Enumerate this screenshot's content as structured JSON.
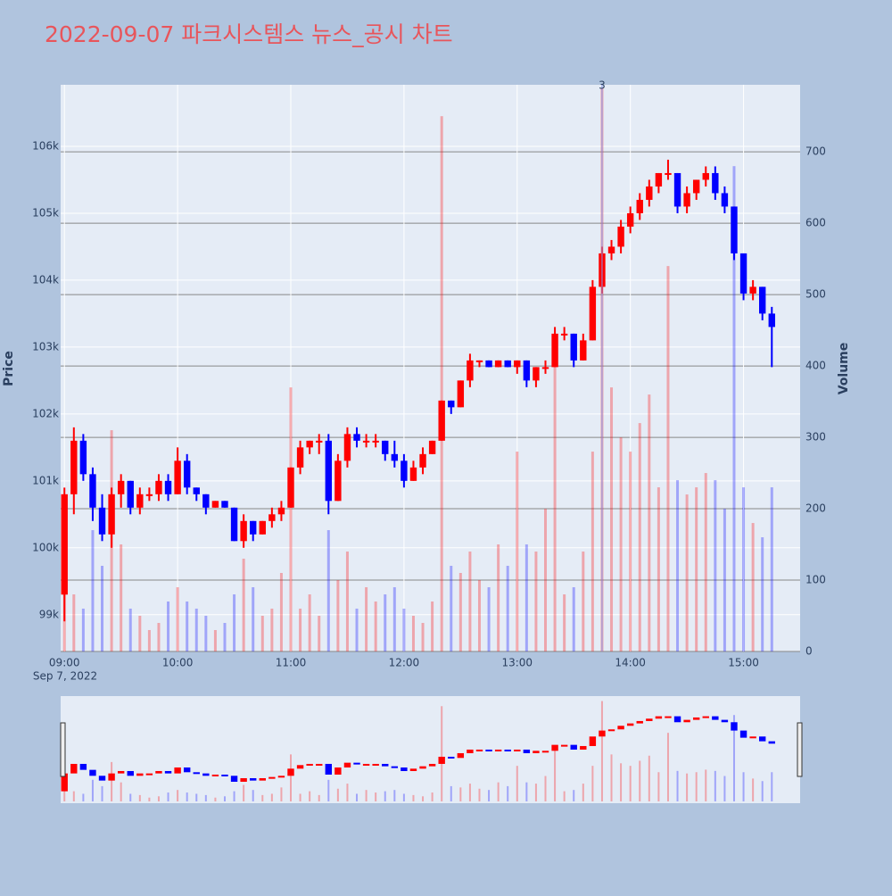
{
  "chart_data": {
    "type": "candlestick",
    "title": "2022-09-07 파크시스템스 뉴스_공시 차트",
    "x": [
      "09:00",
      "09:05",
      "09:10",
      "09:15",
      "09:20",
      "09:25",
      "09:30",
      "09:35",
      "09:40",
      "09:45",
      "09:50",
      "09:55",
      "10:00",
      "10:05",
      "10:10",
      "10:15",
      "10:20",
      "10:25",
      "10:30",
      "10:35",
      "10:40",
      "10:45",
      "10:50",
      "10:55",
      "11:00",
      "11:05",
      "11:10",
      "11:15",
      "11:20",
      "11:25",
      "11:30",
      "11:35",
      "11:40",
      "11:45",
      "11:50",
      "11:55",
      "12:00",
      "12:05",
      "12:10",
      "12:15",
      "12:20",
      "12:25",
      "12:30",
      "12:35",
      "12:40",
      "12:45",
      "12:50",
      "12:55",
      "13:00",
      "13:05",
      "13:10",
      "13:15",
      "13:20",
      "13:25",
      "13:30",
      "13:35",
      "13:40",
      "13:45",
      "13:50",
      "13:55",
      "14:00",
      "14:05",
      "14:10",
      "14:15",
      "14:20",
      "14:25",
      "14:30",
      "14:35",
      "14:40",
      "14:45",
      "14:50",
      "14:55",
      "15:00",
      "15:05",
      "15:10",
      "15:15"
    ],
    "open": [
      99300,
      100800,
      101600,
      101100,
      100600,
      100200,
      100800,
      101000,
      100600,
      100800,
      100800,
      101000,
      100800,
      101300,
      100900,
      100800,
      100600,
      100700,
      100600,
      100100,
      100400,
      100200,
      100400,
      100500,
      100600,
      101200,
      101500,
      101600,
      101600,
      100700,
      101300,
      101700,
      101600,
      101600,
      101600,
      101400,
      101300,
      101000,
      101200,
      101400,
      101600,
      102200,
      102100,
      102500,
      102800,
      102800,
      102700,
      102800,
      102700,
      102800,
      102500,
      102700,
      102700,
      103200,
      103200,
      102800,
      103100,
      103900,
      104400,
      104500,
      104800,
      105000,
      105200,
      105400,
      105600,
      105600,
      105100,
      105300,
      105500,
      105600,
      105300,
      105100,
      104400,
      103800,
      103900,
      103500
    ],
    "high": [
      100900,
      101800,
      101700,
      101200,
      100800,
      100900,
      101100,
      101000,
      100900,
      100900,
      101100,
      101100,
      101500,
      101400,
      100900,
      100800,
      100700,
      100700,
      100600,
      100500,
      100400,
      100400,
      100600,
      100700,
      101200,
      101600,
      101600,
      101700,
      101700,
      101400,
      101800,
      101800,
      101700,
      101700,
      101600,
      101600,
      101400,
      101300,
      101500,
      101600,
      102200,
      102200,
      102500,
      102900,
      102800,
      102800,
      102800,
      102800,
      102800,
      102800,
      102700,
      102800,
      103300,
      103300,
      103200,
      103200,
      104000,
      104500,
      104600,
      104900,
      105100,
      105300,
      105500,
      105600,
      105800,
      105600,
      105400,
      105500,
      105700,
      105700,
      105400,
      105100,
      104400,
      104000,
      103900,
      103600
    ],
    "low": [
      98900,
      100500,
      101000,
      100400,
      100100,
      100000,
      100600,
      100500,
      100500,
      100700,
      100700,
      100700,
      100800,
      100800,
      100700,
      100500,
      100600,
      100600,
      100100,
      100000,
      100100,
      100200,
      100300,
      100400,
      100600,
      101100,
      101400,
      101400,
      100500,
      100700,
      101200,
      101500,
      101500,
      101500,
      101300,
      101200,
      100900,
      101000,
      101100,
      101400,
      101600,
      102000,
      102100,
      102400,
      102700,
      102700,
      102700,
      102700,
      102600,
      102400,
      102400,
      102600,
      102700,
      103100,
      102700,
      102800,
      103100,
      103800,
      104300,
      104400,
      104700,
      104900,
      105100,
      105300,
      105500,
      105000,
      105000,
      105200,
      105400,
      105200,
      105000,
      104300,
      103700,
      103700,
      103400,
      102700
    ],
    "close": [
      100800,
      101600,
      101100,
      100600,
      100200,
      100800,
      101000,
      100600,
      100800,
      100800,
      101000,
      100800,
      101300,
      100900,
      100800,
      100600,
      100700,
      100600,
      100100,
      100400,
      100200,
      100400,
      100500,
      100600,
      101200,
      101500,
      101600,
      101600,
      100700,
      101300,
      101700,
      101600,
      101600,
      101600,
      101400,
      101300,
      101000,
      101200,
      101400,
      101600,
      102200,
      102100,
      102500,
      102800,
      102800,
      102700,
      102800,
      102700,
      102800,
      102500,
      102700,
      102700,
      103200,
      103200,
      102800,
      103100,
      103900,
      104400,
      104500,
      104800,
      105000,
      105200,
      105400,
      105600,
      105600,
      105100,
      105300,
      105500,
      105600,
      105300,
      105100,
      104400,
      103800,
      103900,
      103500,
      103300
    ],
    "volume": [
      160,
      80,
      60,
      170,
      120,
      310,
      150,
      60,
      50,
      30,
      40,
      70,
      90,
      70,
      60,
      50,
      30,
      40,
      80,
      130,
      90,
      50,
      60,
      110,
      370,
      60,
      80,
      50,
      170,
      100,
      140,
      60,
      90,
      70,
      80,
      90,
      60,
      50,
      40,
      70,
      750,
      120,
      110,
      140,
      100,
      90,
      150,
      120,
      280,
      150,
      140,
      200,
      420,
      80,
      90,
      140,
      280,
      790,
      370,
      300,
      280,
      320,
      360,
      230,
      540,
      240,
      220,
      230,
      250,
      240,
      200,
      680,
      230,
      180,
      160,
      230
    ],
    "increasing_color": "#ff0000",
    "decreasing_color": "#0000ff",
    "xlim": [
      "08:58",
      "15:30"
    ],
    "xticks": [
      "09:00",
      "10:00",
      "11:00",
      "12:00",
      "13:00",
      "14:00",
      "15:00"
    ],
    "xdate": "Sep 7, 2022",
    "ylim": [
      98450,
      106920
    ],
    "yticks": [
      {
        "value": 99000,
        "label": "99k"
      },
      {
        "value": 100000,
        "label": "100k"
      },
      {
        "value": 101000,
        "label": "101k"
      },
      {
        "value": 102000,
        "label": "102k"
      },
      {
        "value": 103000,
        "label": "103k"
      },
      {
        "value": 104000,
        "label": "104k"
      },
      {
        "value": 105000,
        "label": "105k"
      },
      {
        "value": 106000,
        "label": "106k"
      }
    ],
    "y2lim": [
      0,
      794
    ],
    "y2ticks": [
      0,
      100,
      200,
      300,
      400,
      500,
      600,
      700
    ],
    "ylabel": "Price",
    "y2label": "Volume",
    "annotations": [
      {
        "x": "13:45",
        "text": "3"
      }
    ]
  }
}
